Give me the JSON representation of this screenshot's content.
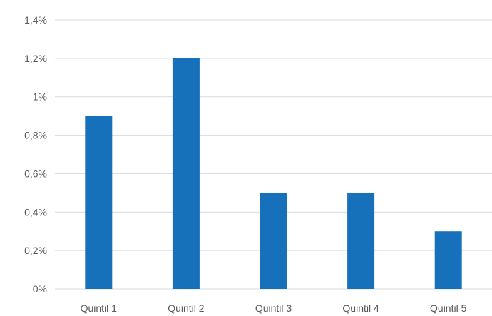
{
  "chart_data": {
    "type": "bar",
    "title": "",
    "xlabel": "",
    "ylabel": "",
    "categories": [
      "Quintil 1",
      "Quintil 2",
      "Quintil 3",
      "Quintil 4",
      "Quintil 5"
    ],
    "values": [
      0.9,
      1.2,
      0.5,
      0.5,
      0.3
    ],
    "unit": "%",
    "ylim": [
      0,
      1.4
    ],
    "yticks": [
      {
        "value": 0,
        "label": "0%"
      },
      {
        "value": 0.2,
        "label": "0,2%"
      },
      {
        "value": 0.4,
        "label": "0,4%"
      },
      {
        "value": 0.6,
        "label": "0,6%"
      },
      {
        "value": 0.8,
        "label": "0,8%"
      },
      {
        "value": 1.0,
        "label": "1%"
      },
      {
        "value": 1.2,
        "label": "1,2%"
      },
      {
        "value": 1.4,
        "label": "1,4%"
      }
    ],
    "grid": true,
    "legend": "none",
    "colors": {
      "bar": "#1770BA",
      "grid": "#D9D9D9",
      "text": "#595959"
    }
  }
}
